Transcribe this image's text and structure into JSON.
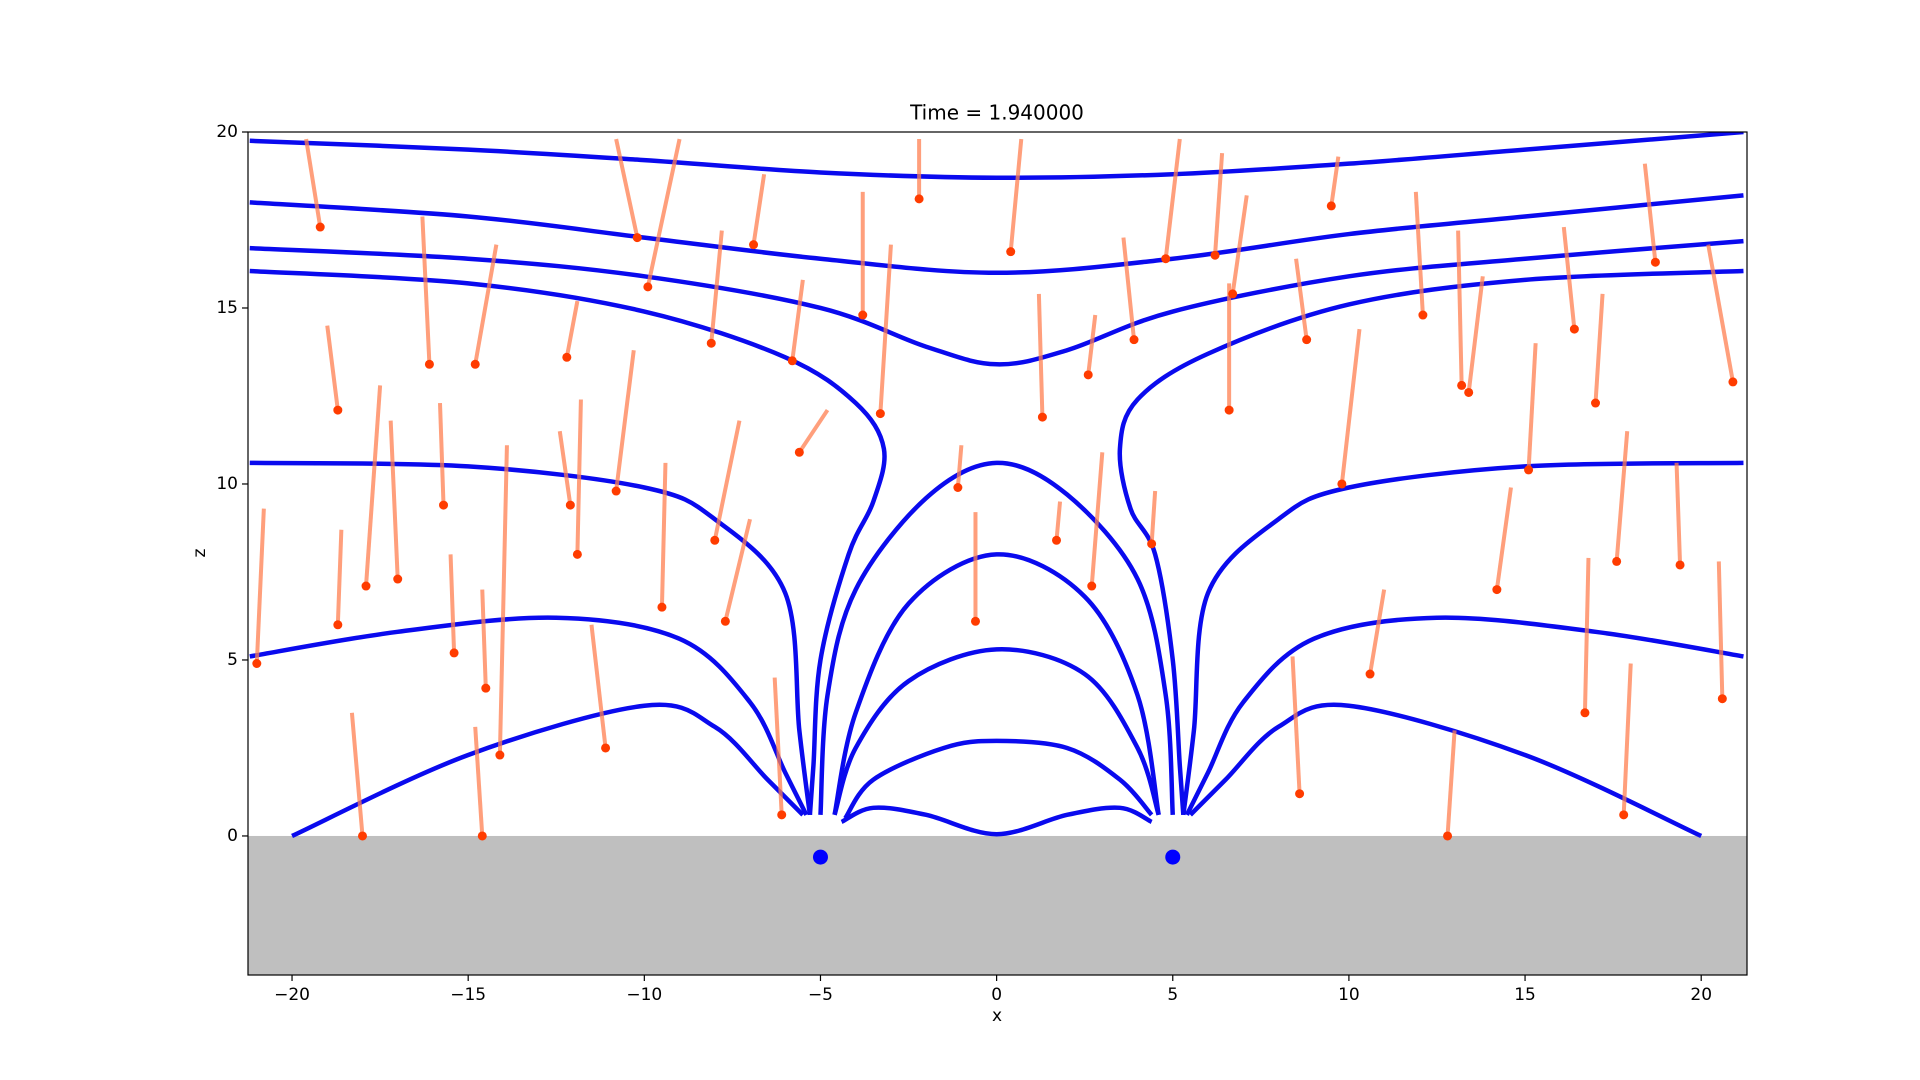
{
  "chart_data": {
    "type": "field",
    "title": "Time = 1.940000",
    "xlabel": "x",
    "ylabel": "z",
    "xlim": [
      -21.25,
      21.3
    ],
    "ylim": [
      -3.95,
      20
    ],
    "xticks": [
      {
        "value": -20,
        "label": "−20"
      },
      {
        "value": -15,
        "label": "−15"
      },
      {
        "value": -10,
        "label": "−10"
      },
      {
        "value": -5,
        "label": "−5"
      },
      0,
      5,
      10,
      15,
      20
    ],
    "yticks": [
      0,
      5,
      10,
      15,
      20
    ],
    "surface": 0,
    "ground_color": "#bfbfbf",
    "field_lines": {
      "color": "#0a0aee",
      "lines": [
        {
          "x": [
            -21.2,
            -15,
            -10,
            -5,
            0,
            5,
            10,
            15,
            21.2
          ],
          "z": [
            19.75,
            19.5,
            19.2,
            18.85,
            18.7,
            18.8,
            19.1,
            19.5,
            20.0
          ]
        },
        {
          "x": [
            -21.2,
            -15,
            -10,
            -5,
            0,
            5,
            10,
            15,
            21.2
          ],
          "z": [
            18.0,
            17.6,
            17.0,
            16.4,
            16.0,
            16.4,
            17.1,
            17.6,
            18.2
          ]
        },
        {
          "x": [
            -21.2,
            -15,
            -10,
            -5,
            -2,
            0,
            2,
            5,
            10,
            15,
            21.2
          ],
          "z": [
            16.7,
            16.4,
            15.9,
            15.0,
            13.9,
            13.4,
            13.8,
            14.9,
            15.9,
            16.4,
            16.9
          ]
        },
        {
          "x": [
            -21.2,
            -15,
            -10,
            -6,
            -4,
            -3.2,
            -3.5,
            -4.2,
            -5,
            -5.2,
            -5.3
          ],
          "z": [
            16.05,
            15.7,
            14.9,
            13.6,
            12.3,
            11.0,
            9.5,
            8.0,
            5,
            2,
            0.6
          ]
        },
        {
          "x": [
            21.2,
            15,
            10,
            6,
            4,
            3.5,
            3.8,
            4.5,
            5,
            5.2,
            5.3
          ],
          "z": [
            16.05,
            15.8,
            15.1,
            13.7,
            12.4,
            11.0,
            9.3,
            8.0,
            5,
            2,
            0.6
          ]
        },
        {
          "x": [
            -21.2,
            -15,
            -10,
            -8,
            -6,
            -5.6,
            -5.3
          ],
          "z": [
            10.6,
            10.5,
            9.9,
            9.0,
            6.9,
            3,
            0.6
          ]
        },
        {
          "x": [
            21.2,
            15,
            10,
            8,
            6,
            5.6,
            5.3
          ],
          "z": [
            10.6,
            10.5,
            9.9,
            9.0,
            6.9,
            3,
            0.6
          ]
        },
        {
          "x": [
            -21.2,
            -17,
            -12.5,
            -9,
            -7,
            -6,
            -5.4
          ],
          "z": [
            5.1,
            5.8,
            6.2,
            5.6,
            3.8,
            1.8,
            0.6
          ]
        },
        {
          "x": [
            21.2,
            17,
            12.5,
            9,
            7,
            6,
            5.4
          ],
          "z": [
            5.1,
            5.8,
            6.2,
            5.6,
            3.8,
            1.8,
            0.6
          ]
        },
        {
          "x": [
            -20,
            -15,
            -10,
            -8,
            -6.5,
            -5.5
          ],
          "z": [
            0,
            2.3,
            3.7,
            3.1,
            1.6,
            0.6
          ]
        },
        {
          "x": [
            20,
            15,
            10,
            8,
            6.5,
            5.5
          ],
          "z": [
            0,
            2.3,
            3.7,
            3.1,
            1.6,
            0.6
          ]
        },
        {
          "x": [
            -5,
            -4.8,
            -4,
            -2,
            0,
            2,
            4,
            4.8,
            5
          ],
          "z": [
            0.6,
            4,
            7,
            9.6,
            10.6,
            9.7,
            7.3,
            4,
            0.6
          ]
        },
        {
          "x": [
            -4.6,
            -4,
            -2.5,
            0,
            2.5,
            4,
            4.6
          ],
          "z": [
            0.6,
            3.5,
            6.6,
            8.0,
            6.8,
            4,
            0.6
          ]
        },
        {
          "x": [
            -4.6,
            -4,
            -2.5,
            0,
            2.5,
            4,
            4.6
          ],
          "z": [
            0.6,
            2.5,
            4.4,
            5.3,
            4.6,
            2.5,
            0.6
          ]
        },
        {
          "x": [
            -4.3,
            -3.5,
            -1.5,
            0,
            2,
            3.5,
            4.4
          ],
          "z": [
            0.5,
            1.6,
            2.5,
            2.7,
            2.5,
            1.6,
            0.6
          ]
        },
        {
          "x": [
            -4.4,
            -3.5,
            -2,
            0,
            2,
            3.5,
            4.4
          ],
          "z": [
            0.4,
            0.8,
            0.6,
            0.05,
            0.6,
            0.8,
            0.4
          ]
        }
      ]
    },
    "particles": {
      "trail_color": "#ff7f50",
      "color": "#ff3c00",
      "trails": [
        {
          "x": [
            -20.8,
            -21.0
          ],
          "z": [
            9.3,
            4.9
          ]
        },
        {
          "x": [
            -19.6,
            -19.2
          ],
          "z": [
            19.8,
            17.3
          ]
        },
        {
          "x": [
            -19.0,
            -18.7
          ],
          "z": [
            14.5,
            12.1
          ]
        },
        {
          "x": [
            -18.6,
            -18.7
          ],
          "z": [
            8.7,
            6.0
          ]
        },
        {
          "x": [
            -17.5,
            -17.9
          ],
          "z": [
            12.8,
            7.1
          ]
        },
        {
          "x": [
            -17.2,
            -17.0
          ],
          "z": [
            11.8,
            7.3
          ]
        },
        {
          "x": [
            -16.3,
            -16.1
          ],
          "z": [
            17.6,
            13.4
          ]
        },
        {
          "x": [
            -15.8,
            -15.7
          ],
          "z": [
            12.3,
            9.4
          ]
        },
        {
          "x": [
            -15.5,
            -15.4
          ],
          "z": [
            8.0,
            5.2
          ]
        },
        {
          "x": [
            -14.2,
            -14.8
          ],
          "z": [
            16.8,
            13.4
          ]
        },
        {
          "x": [
            -14.6,
            -14.5
          ],
          "z": [
            7.0,
            4.2
          ]
        },
        {
          "x": [
            -13.9,
            -14.1
          ],
          "z": [
            11.1,
            2.3
          ]
        },
        {
          "x": [
            -12.4,
            -12.1
          ],
          "z": [
            11.5,
            9.4
          ]
        },
        {
          "x": [
            -11.9,
            -12.2
          ],
          "z": [
            15.2,
            13.6
          ]
        },
        {
          "x": [
            -11.5,
            -11.1
          ],
          "z": [
            6.0,
            2.5
          ]
        },
        {
          "x": [
            -11.8,
            -11.9
          ],
          "z": [
            12.4,
            8.0
          ]
        },
        {
          "x": [
            -10.8,
            -10.2
          ],
          "z": [
            19.8,
            17.0
          ]
        },
        {
          "x": [
            -10.3,
            -10.8
          ],
          "z": [
            13.8,
            9.8
          ]
        },
        {
          "x": [
            -9.4,
            -9.5
          ],
          "z": [
            10.6,
            6.5
          ]
        },
        {
          "x": [
            -9.0,
            -9.9
          ],
          "z": [
            19.8,
            15.6
          ]
        },
        {
          "x": [
            -7.8,
            -8.1
          ],
          "z": [
            17.2,
            14.0
          ]
        },
        {
          "x": [
            -7.3,
            -8.0
          ],
          "z": [
            11.8,
            8.4
          ]
        },
        {
          "x": [
            -7.0,
            -7.7
          ],
          "z": [
            9.0,
            6.1
          ]
        },
        {
          "x": [
            -6.6,
            -6.9
          ],
          "z": [
            18.8,
            16.8
          ]
        },
        {
          "x": [
            -5.5,
            -5.8
          ],
          "z": [
            15.8,
            13.5
          ]
        },
        {
          "x": [
            -4.8,
            -5.6
          ],
          "z": [
            12.1,
            10.9
          ]
        },
        {
          "x": [
            -3.8,
            -3.8
          ],
          "z": [
            18.3,
            14.8
          ]
        },
        {
          "x": [
            -3.0,
            -3.3
          ],
          "z": [
            16.8,
            12.0
          ]
        },
        {
          "x": [
            -2.2,
            -2.2
          ],
          "z": [
            19.8,
            18.1
          ]
        },
        {
          "x": [
            -1.0,
            -1.1
          ],
          "z": [
            11.1,
            9.9
          ]
        },
        {
          "x": [
            -0.6,
            -0.6
          ],
          "z": [
            9.2,
            6.1
          ]
        },
        {
          "x": [
            0.7,
            0.4
          ],
          "z": [
            19.8,
            16.6
          ]
        },
        {
          "x": [
            1.2,
            1.3
          ],
          "z": [
            15.4,
            11.9
          ]
        },
        {
          "x": [
            1.8,
            1.7
          ],
          "z": [
            9.5,
            8.4
          ]
        },
        {
          "x": [
            2.8,
            2.6
          ],
          "z": [
            14.8,
            13.1
          ]
        },
        {
          "x": [
            3.0,
            2.7
          ],
          "z": [
            10.9,
            7.1
          ]
        },
        {
          "x": [
            3.6,
            3.9
          ],
          "z": [
            17.0,
            14.1
          ]
        },
        {
          "x": [
            4.5,
            4.4
          ],
          "z": [
            9.8,
            8.3
          ]
        },
        {
          "x": [
            5.2,
            4.8
          ],
          "z": [
            19.8,
            16.4
          ]
        },
        {
          "x": [
            6.4,
            6.2
          ],
          "z": [
            19.4,
            16.5
          ]
        },
        {
          "x": [
            6.6,
            6.6
          ],
          "z": [
            15.7,
            12.1
          ]
        },
        {
          "x": [
            7.1,
            6.7
          ],
          "z": [
            18.2,
            15.4
          ]
        },
        {
          "x": [
            8.5,
            8.8
          ],
          "z": [
            16.4,
            14.1
          ]
        },
        {
          "x": [
            9.7,
            9.5
          ],
          "z": [
            19.3,
            17.9
          ]
        },
        {
          "x": [
            10.3,
            9.8
          ],
          "z": [
            14.4,
            10.0
          ]
        },
        {
          "x": [
            11.0,
            10.6
          ],
          "z": [
            7.0,
            4.6
          ]
        },
        {
          "x": [
            11.9,
            12.1
          ],
          "z": [
            18.3,
            14.8
          ]
        },
        {
          "x": [
            13.1,
            13.2
          ],
          "z": [
            17.2,
            12.8
          ]
        },
        {
          "x": [
            13.8,
            13.4
          ],
          "z": [
            15.9,
            12.6
          ]
        },
        {
          "x": [
            14.6,
            14.2
          ],
          "z": [
            9.9,
            7.0
          ]
        },
        {
          "x": [
            15.3,
            15.1
          ],
          "z": [
            14.0,
            10.4
          ]
        },
        {
          "x": [
            16.1,
            16.4
          ],
          "z": [
            17.3,
            14.4
          ]
        },
        {
          "x": [
            16.8,
            16.7
          ],
          "z": [
            7.9,
            3.5
          ]
        },
        {
          "x": [
            17.2,
            17.0
          ],
          "z": [
            15.4,
            12.3
          ]
        },
        {
          "x": [
            17.9,
            17.6
          ],
          "z": [
            11.5,
            7.8
          ]
        },
        {
          "x": [
            18.4,
            18.7
          ],
          "z": [
            19.1,
            16.3
          ]
        },
        {
          "x": [
            19.3,
            19.4
          ],
          "z": [
            10.6,
            7.7
          ]
        },
        {
          "x": [
            20.2,
            20.9
          ],
          "z": [
            16.8,
            12.9
          ]
        },
        {
          "x": [
            20.5,
            20.6
          ],
          "z": [
            7.8,
            3.9
          ]
        },
        {
          "x": [
            -18.3,
            -18.0
          ],
          "z": [
            3.5,
            0.0
          ]
        },
        {
          "x": [
            -14.8,
            -14.6
          ],
          "z": [
            3.1,
            0.0
          ]
        },
        {
          "x": [
            -6.3,
            -6.1
          ],
          "z": [
            4.5,
            0.6
          ]
        },
        {
          "x": [
            8.4,
            8.6
          ],
          "z": [
            5.1,
            1.2
          ]
        },
        {
          "x": [
            13.0,
            12.8
          ],
          "z": [
            3.0,
            0.0
          ]
        },
        {
          "x": [
            18.0,
            17.8
          ],
          "z": [
            4.9,
            0.6
          ]
        }
      ]
    },
    "sources": {
      "color": "#0000ff",
      "x": [
        -5,
        5
      ],
      "z": [
        -0.6,
        -0.6
      ]
    }
  }
}
